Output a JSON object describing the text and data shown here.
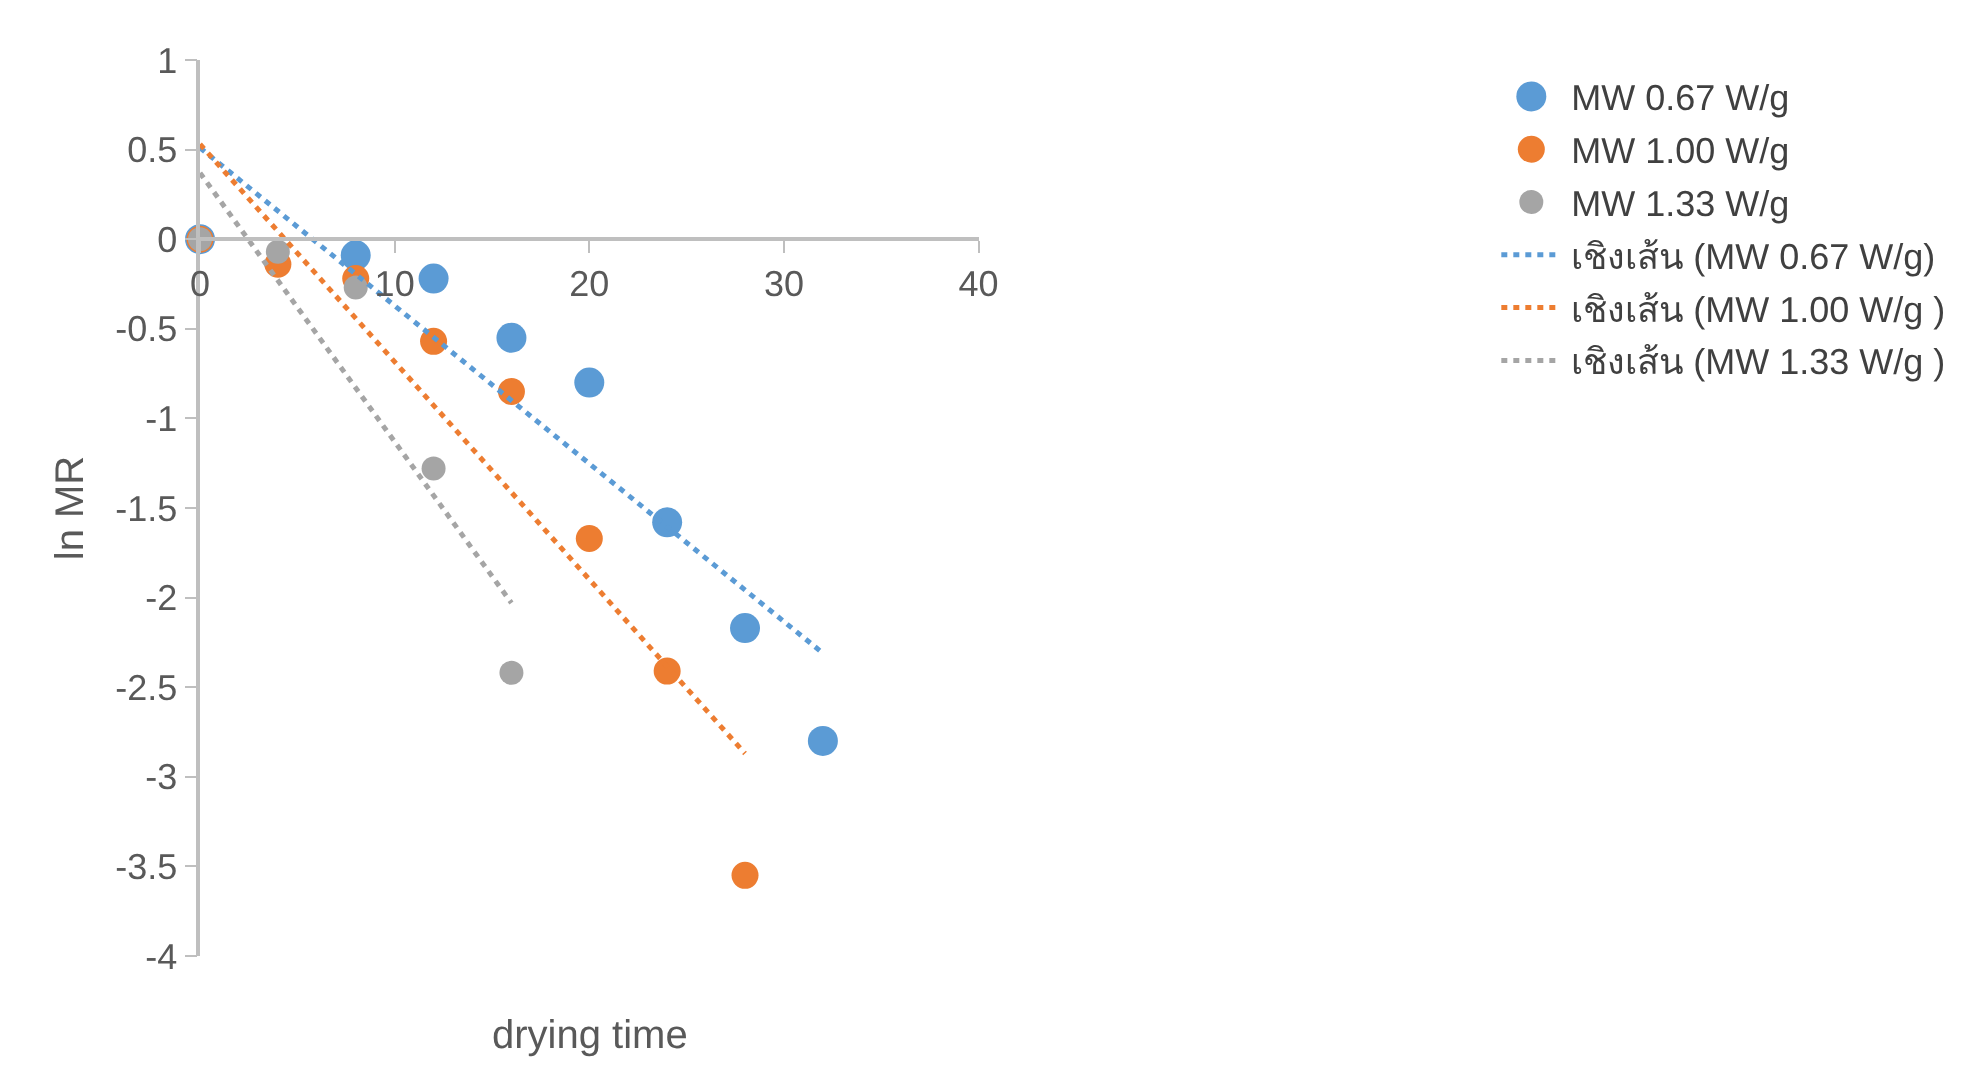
{
  "chart_data": {
    "type": "scatter",
    "xlabel": "drying time",
    "ylabel": "ln MR",
    "xlim": [
      0,
      40
    ],
    "xticks": [
      0,
      10,
      20,
      30,
      40
    ],
    "ylim": [
      -4,
      1
    ],
    "yticks": [
      -4,
      -3.5,
      -3,
      -2.5,
      -2,
      -1.5,
      -1,
      -0.5,
      0,
      0.5,
      1
    ],
    "grid": false,
    "legend": "right",
    "marker": "circle",
    "series": [
      {
        "name": "MW 0.67 W/g",
        "color": "#5b9bd5",
        "x": [
          0,
          4,
          8,
          12,
          16,
          20,
          24,
          28,
          32
        ],
        "values": [
          0,
          null,
          -0.09,
          -0.22,
          -0.55,
          -0.8,
          -1.58,
          -2.17,
          -2.8
        ]
      },
      {
        "name": "MW 1.00 W/g",
        "color": "#ed7d31",
        "x": [
          0,
          4,
          8,
          12,
          16,
          20,
          24,
          28
        ],
        "values": [
          0,
          -0.14,
          -0.22,
          -0.57,
          -0.85,
          -1.67,
          -2.41,
          -3.55
        ]
      },
      {
        "name": "MW 1.33 W/g",
        "color": "#a5a5a5",
        "x": [
          0,
          4,
          8,
          12,
          16
        ],
        "values": [
          0,
          -0.07,
          -0.27,
          -1.28,
          -2.42
        ]
      },
      {
        "name": "เชิงเส้น (MW 0.67 W/g)",
        "type": "line",
        "line_style": "dotted",
        "marker": "none",
        "color": "#5b9bd5",
        "x": [
          0,
          32
        ],
        "values": [
          0.51,
          -2.31
        ]
      },
      {
        "name": "เชิงเส้น (MW 1.00 W/g )",
        "type": "line",
        "line_style": "dotted",
        "marker": "none",
        "color": "#ed7d31",
        "x": [
          0,
          28
        ],
        "values": [
          0.53,
          -2.87
        ]
      },
      {
        "name": "เชิงเส้น (MW 1.33 W/g )",
        "type": "line",
        "line_style": "dotted",
        "marker": "none",
        "color": "#a5a5a5",
        "x": [
          0,
          16
        ],
        "values": [
          0.37,
          -2.03
        ]
      }
    ]
  }
}
